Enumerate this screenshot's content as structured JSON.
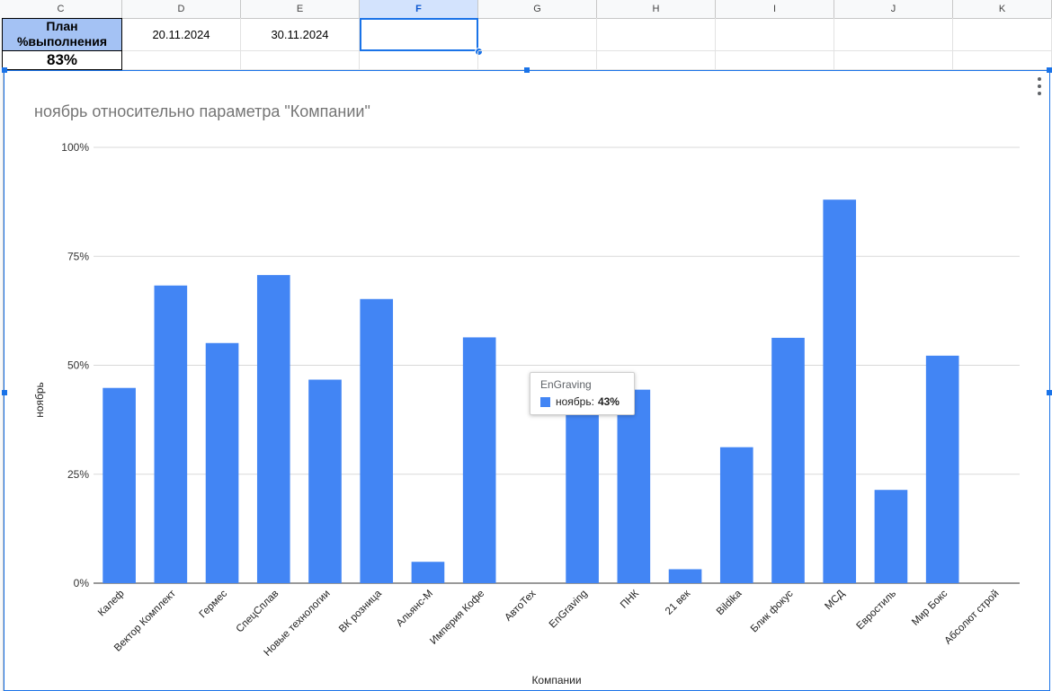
{
  "sheet": {
    "columns": [
      "C",
      "D",
      "E",
      "F",
      "G",
      "H",
      "I",
      "J",
      "K"
    ],
    "active_column": "F",
    "plan_label": "План %выполнения",
    "plan_value": "83%",
    "date_1": "20.11.2024",
    "date_2": "30.11.2024"
  },
  "colors": {
    "bar": "#4285f4",
    "selection": "#1a73e8",
    "header_highlight": "#a4c2f4"
  },
  "chart_data": {
    "type": "bar",
    "title": "ноябрь относительно параметра \"Компании\"",
    "xlabel": "Компании",
    "ylabel": "ноябрь",
    "ylim": [
      0,
      100
    ],
    "yticks": [
      "0%",
      "25%",
      "50%",
      "75%",
      "100%"
    ],
    "grid": true,
    "categories": [
      "Калеф",
      "Вектор Комплект",
      "Гермес",
      "СпецСплав",
      "Новые технологии",
      "ВК розница",
      "Альянс-М",
      "Империя Кофе",
      "АвтоТех",
      "EnGraving",
      "ПНК",
      "21 век",
      "Bildika",
      "Блик фокус",
      "МСД",
      "Евростиль",
      "Мир Бокс",
      "Абсолют строй"
    ],
    "series": [
      {
        "name": "ноябрь",
        "values": [
          44.8,
          68.3,
          55.1,
          70.7,
          46.7,
          65.2,
          4.9,
          56.4,
          0,
          43,
          44.4,
          3.2,
          31.2,
          56.3,
          88,
          21.4,
          52.2,
          0
        ]
      }
    ]
  },
  "tooltip": {
    "title": "EnGraving",
    "series": "ноябрь:",
    "value": "43%"
  }
}
